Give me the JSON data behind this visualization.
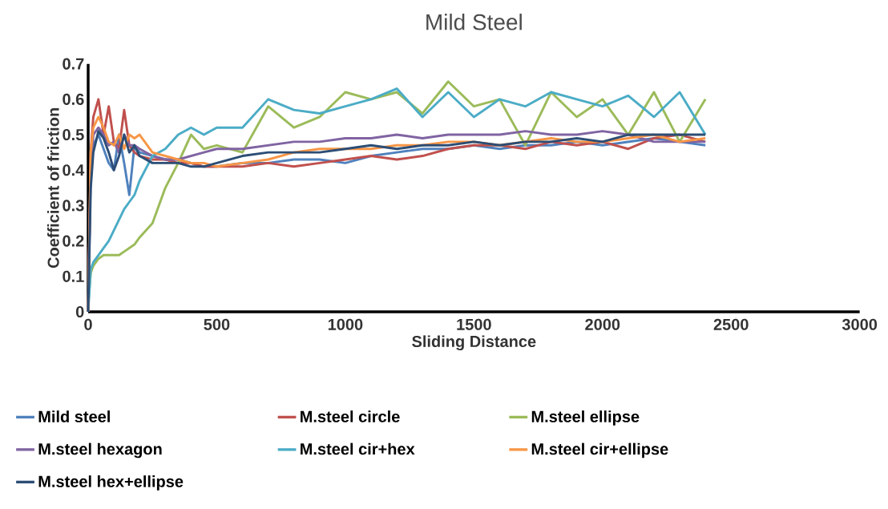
{
  "chart_data": {
    "type": "line",
    "title": "Mild Steel",
    "xlabel": "Sliding Distance",
    "ylabel": "Coefficient of friction",
    "x": [
      0,
      10,
      20,
      40,
      60,
      80,
      100,
      120,
      140,
      160,
      180,
      200,
      250,
      300,
      350,
      400,
      450,
      500,
      600,
      700,
      800,
      900,
      1000,
      1100,
      1200,
      1300,
      1400,
      1500,
      1600,
      1700,
      1800,
      1900,
      2000,
      2100,
      2200,
      2300,
      2400
    ],
    "xlim": [
      0,
      3000
    ],
    "xticks": [
      0,
      500,
      1000,
      1500,
      2000,
      2500,
      3000
    ],
    "ylim": [
      0,
      0.7
    ],
    "yticks": [
      0,
      0.1,
      0.2,
      0.3,
      0.4,
      0.5,
      0.6,
      0.7
    ],
    "grid": false,
    "legend": "bottom",
    "marker": "none",
    "line_style": "solid",
    "series": [
      {
        "name": "Mild steel",
        "color": "#4f81bd",
        "values": [
          0,
          0.42,
          0.47,
          0.5,
          0.46,
          0.42,
          0.4,
          0.5,
          0.42,
          0.33,
          0.47,
          0.45,
          0.44,
          0.43,
          0.43,
          0.42,
          0.41,
          0.41,
          0.42,
          0.42,
          0.43,
          0.43,
          0.42,
          0.44,
          0.45,
          0.46,
          0.46,
          0.47,
          0.46,
          0.47,
          0.47,
          0.48,
          0.47,
          0.48,
          0.49,
          0.48,
          0.47
        ]
      },
      {
        "name": "M.steel circle",
        "color": "#c0504d",
        "values": [
          0,
          0.45,
          0.55,
          0.6,
          0.5,
          0.58,
          0.48,
          0.46,
          0.57,
          0.47,
          0.45,
          0.44,
          0.43,
          0.43,
          0.42,
          0.42,
          0.41,
          0.41,
          0.41,
          0.42,
          0.41,
          0.42,
          0.43,
          0.44,
          0.43,
          0.44,
          0.46,
          0.47,
          0.47,
          0.46,
          0.48,
          0.47,
          0.48,
          0.46,
          0.49,
          0.5,
          0.48
        ]
      },
      {
        "name": "M.steel ellipse",
        "color": "#9bbb59",
        "values": [
          0.02,
          0.11,
          0.13,
          0.15,
          0.16,
          0.16,
          0.16,
          0.16,
          0.17,
          0.18,
          0.19,
          0.21,
          0.25,
          0.35,
          0.42,
          0.5,
          0.46,
          0.47,
          0.45,
          0.58,
          0.52,
          0.55,
          0.62,
          0.6,
          0.62,
          0.56,
          0.65,
          0.58,
          0.6,
          0.47,
          0.62,
          0.55,
          0.6,
          0.5,
          0.62,
          0.48,
          0.6
        ]
      },
      {
        "name": "M.steel hexagon",
        "color": "#8064a2",
        "values": [
          0,
          0.4,
          0.5,
          0.52,
          0.5,
          0.47,
          0.48,
          0.45,
          0.5,
          0.47,
          0.47,
          0.46,
          0.44,
          0.43,
          0.43,
          0.44,
          0.45,
          0.46,
          0.46,
          0.47,
          0.48,
          0.48,
          0.49,
          0.49,
          0.5,
          0.49,
          0.5,
          0.5,
          0.5,
          0.51,
          0.5,
          0.5,
          0.51,
          0.5,
          0.48,
          0.48,
          0.48
        ]
      },
      {
        "name": "M.steel cir+hex",
        "color": "#4bacc6",
        "values": [
          0,
          0.12,
          0.14,
          0.16,
          0.18,
          0.2,
          0.23,
          0.26,
          0.29,
          0.31,
          0.33,
          0.37,
          0.44,
          0.46,
          0.5,
          0.52,
          0.5,
          0.52,
          0.52,
          0.6,
          0.57,
          0.56,
          0.58,
          0.6,
          0.63,
          0.55,
          0.62,
          0.55,
          0.6,
          0.58,
          0.62,
          0.6,
          0.58,
          0.61,
          0.55,
          0.62,
          0.5
        ]
      },
      {
        "name": "M.steel cir+ellipse",
        "color": "#f79646",
        "values": [
          0,
          0.45,
          0.52,
          0.55,
          0.52,
          0.48,
          0.47,
          0.5,
          0.46,
          0.5,
          0.49,
          0.5,
          0.45,
          0.44,
          0.43,
          0.42,
          0.42,
          0.41,
          0.42,
          0.43,
          0.45,
          0.46,
          0.46,
          0.46,
          0.47,
          0.47,
          0.48,
          0.48,
          0.47,
          0.48,
          0.49,
          0.48,
          0.48,
          0.49,
          0.5,
          0.48,
          0.49
        ]
      },
      {
        "name": "M.steel hex+ellipse",
        "color": "#2c4d75",
        "values": [
          0,
          0.35,
          0.45,
          0.51,
          0.49,
          0.45,
          0.4,
          0.44,
          0.5,
          0.45,
          0.47,
          0.44,
          0.42,
          0.42,
          0.42,
          0.41,
          0.41,
          0.42,
          0.44,
          0.45,
          0.45,
          0.45,
          0.46,
          0.47,
          0.46,
          0.47,
          0.47,
          0.48,
          0.47,
          0.48,
          0.48,
          0.49,
          0.48,
          0.5,
          0.5,
          0.5,
          0.5
        ]
      }
    ]
  }
}
